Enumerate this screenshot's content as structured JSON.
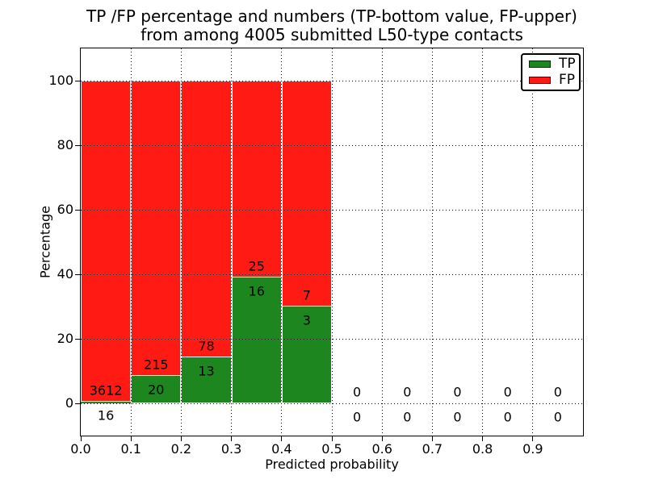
{
  "title": {
    "line1": "TP /FP percentage and numbers (TP-bottom value, FP-upper)",
    "line2": "from among 4005 submitted L50-type contacts"
  },
  "axes": {
    "xlabel": "Predicted probability",
    "ylabel": "Percentage",
    "yticks": [
      0,
      20,
      40,
      60,
      80,
      100
    ],
    "xticks": [
      0.0,
      0.1,
      0.2,
      0.3,
      0.4,
      0.5,
      0.6,
      0.7,
      0.8,
      0.9
    ],
    "xtick_labels": [
      "0.0",
      "0.1",
      "0.2",
      "0.3",
      "0.4",
      "0.5",
      "0.6",
      "0.7",
      "0.8",
      "0.9"
    ],
    "xlim": [
      0,
      1
    ],
    "ylim": [
      -10,
      110
    ],
    "grid_style": "dotted"
  },
  "legend": {
    "position": "upper-right",
    "items": [
      {
        "label": "TP",
        "color_key": "tp"
      },
      {
        "label": "FP",
        "color_key": "fp"
      }
    ]
  },
  "colors": {
    "tp": "#1e861e",
    "fp": "#ff1b14",
    "bar_edge": "#ffffff",
    "grid": "#000000",
    "text": "#000000",
    "background": "#ffffff"
  },
  "chart_data": {
    "type": "bar",
    "stacked": true,
    "normalized_to_percent": true,
    "title": "TP /FP percentage and numbers (TP-bottom value, FP-upper) from among 4005 submitted L50-type contacts",
    "xlabel": "Predicted probability",
    "ylabel": "Percentage",
    "xlim": [
      0,
      1
    ],
    "ylim": [
      -10,
      110
    ],
    "bin_width": 0.1,
    "total_submitted": 4005,
    "legend_entries": [
      "TP",
      "FP"
    ],
    "bins": [
      {
        "x0": 0.0,
        "x1": 0.1,
        "tp_count": 16,
        "fp_count": 3612,
        "tp_pct": 0.44,
        "fp_pct": 99.56
      },
      {
        "x0": 0.1,
        "x1": 0.2,
        "tp_count": 20,
        "fp_count": 215,
        "tp_pct": 8.51,
        "fp_pct": 91.49
      },
      {
        "x0": 0.2,
        "x1": 0.3,
        "tp_count": 13,
        "fp_count": 78,
        "tp_pct": 14.29,
        "fp_pct": 85.71
      },
      {
        "x0": 0.3,
        "x1": 0.4,
        "tp_count": 16,
        "fp_count": 25,
        "tp_pct": 39.02,
        "fp_pct": 60.98
      },
      {
        "x0": 0.4,
        "x1": 0.5,
        "tp_count": 3,
        "fp_count": 7,
        "tp_pct": 30.0,
        "fp_pct": 70.0
      },
      {
        "x0": 0.5,
        "x1": 0.6,
        "tp_count": 0,
        "fp_count": 0,
        "tp_pct": 0,
        "fp_pct": 0
      },
      {
        "x0": 0.6,
        "x1": 0.7,
        "tp_count": 0,
        "fp_count": 0,
        "tp_pct": 0,
        "fp_pct": 0
      },
      {
        "x0": 0.7,
        "x1": 0.8,
        "tp_count": 0,
        "fp_count": 0,
        "tp_pct": 0,
        "fp_pct": 0
      },
      {
        "x0": 0.8,
        "x1": 0.9,
        "tp_count": 0,
        "fp_count": 0,
        "tp_pct": 0,
        "fp_pct": 0
      },
      {
        "x0": 0.9,
        "x1": 1.0,
        "tp_count": 0,
        "fp_count": 0,
        "tp_pct": 0,
        "fp_pct": 0
      }
    ]
  }
}
